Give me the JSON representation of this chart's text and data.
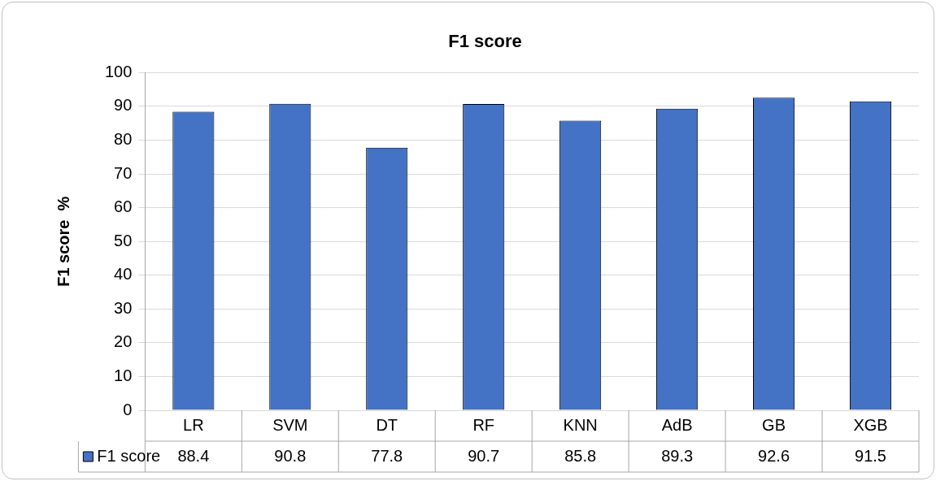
{
  "chart_data": {
    "type": "bar",
    "title": "F1 score",
    "ylabel": "F1 score  %",
    "categories": [
      "LR",
      "SVM",
      "DT",
      "RF",
      "KNN",
      "AdB",
      "GB",
      "XGB"
    ],
    "series": [
      {
        "name": "F1 score",
        "color": "#4472c4",
        "values": [
          88.4,
          90.8,
          77.8,
          90.7,
          85.8,
          89.3,
          92.6,
          91.5
        ]
      }
    ],
    "ylim": [
      0,
      100
    ],
    "yticks": [
      0,
      10,
      20,
      30,
      40,
      50,
      60,
      70,
      80,
      90,
      100
    ],
    "grid": "y",
    "legend": "bottom",
    "data_labels": true
  }
}
